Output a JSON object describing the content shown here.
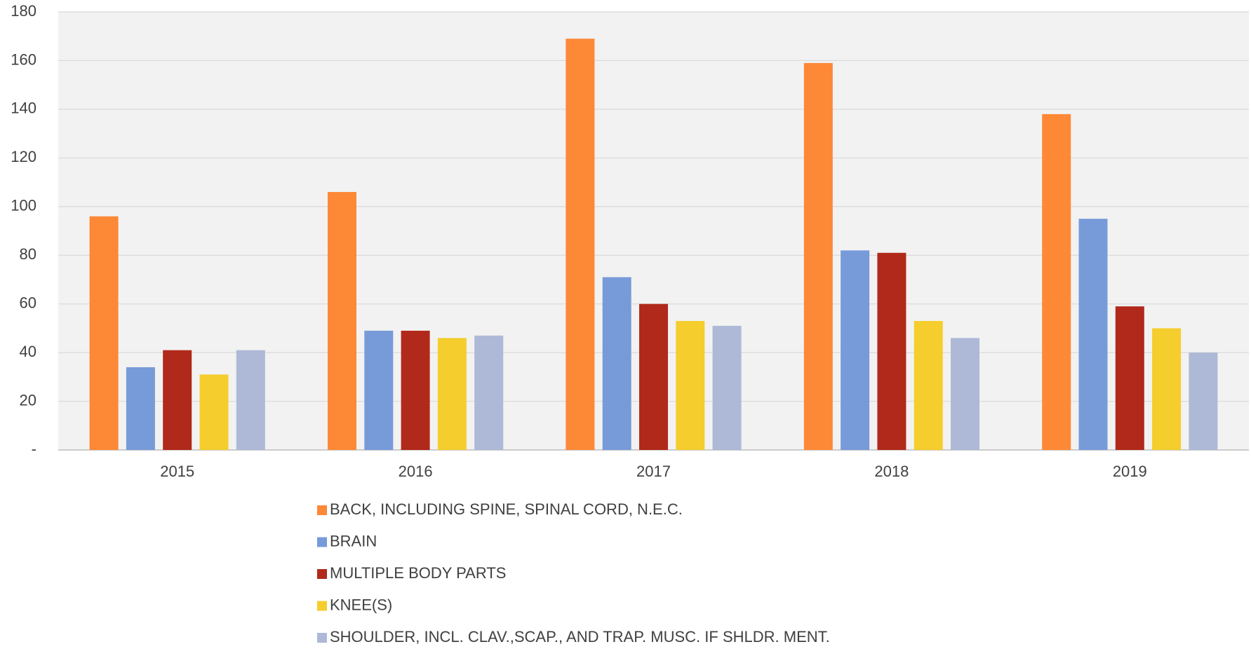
{
  "chart_data": {
    "type": "bar",
    "categories": [
      "2015",
      "2016",
      "2017",
      "2018",
      "2019"
    ],
    "series": [
      {
        "name": "BACK, INCLUDING SPINE, SPINAL CORD, N.E.C.",
        "color": "#fd8836",
        "values": [
          96,
          106,
          169,
          159,
          138
        ]
      },
      {
        "name": "BRAIN",
        "color": "#779bd9",
        "values": [
          34,
          49,
          71,
          82,
          95
        ]
      },
      {
        "name": "MULTIPLE BODY PARTS",
        "color": "#b0291a",
        "values": [
          41,
          49,
          60,
          81,
          59
        ]
      },
      {
        "name": "KNEE(S)",
        "color": "#f5cd2d",
        "values": [
          31,
          46,
          53,
          53,
          50
        ]
      },
      {
        "name": "SHOULDER, INCL. CLAV.,SCAP., AND TRAP. MUSC. IF SHLDR. MENT.",
        "color": "#adb9d6",
        "values": [
          41,
          47,
          51,
          46,
          40
        ]
      }
    ],
    "ylim": [
      0,
      180
    ],
    "yticks": [
      {
        "value": 0,
        "label": "-"
      },
      20,
      40,
      60,
      80,
      100,
      120,
      140,
      160,
      180
    ],
    "grid": true,
    "legend": "bottom"
  }
}
